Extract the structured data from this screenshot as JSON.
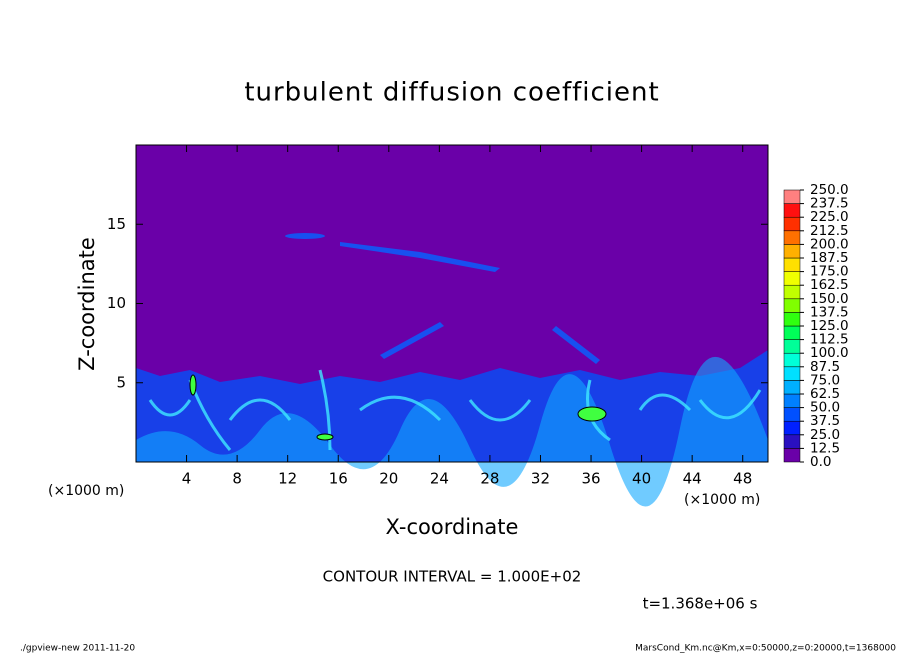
{
  "chart_data": {
    "type": "contour",
    "title": "turbulent diffusion coefficient",
    "xlabel": "X-coordinate",
    "ylabel": "Z-coordinate",
    "x_unit": "(×1000 m)",
    "x_unit_right": "(×1000 m)",
    "xlim": [
      0,
      50
    ],
    "ylim": [
      0,
      20
    ],
    "xticks": [
      4,
      8,
      12,
      16,
      20,
      24,
      28,
      32,
      36,
      40,
      44,
      48
    ],
    "yticks": [
      5,
      10,
      15
    ],
    "contour_interval": "CONTOUR INTERVAL = 1.000E+02",
    "time_label": "t=1.368e+06 s",
    "footer_left": "./gpview-new   2011-11-20",
    "footer_right": "MarsCond_Km.nc@Km,x=0:50000,z=0:20000,t=1368000",
    "colorbar": {
      "levels": [
        {
          "value": 0,
          "label": "0.0"
        },
        {
          "value": 12.5,
          "label": "12.5"
        },
        {
          "value": 25,
          "label": "25.0"
        },
        {
          "value": 37.5,
          "label": "37.5"
        },
        {
          "value": 50,
          "label": "50.0"
        },
        {
          "value": 62.5,
          "label": "62.5"
        },
        {
          "value": 75,
          "label": "75.0"
        },
        {
          "value": 87.5,
          "label": "87.5"
        },
        {
          "value": 100,
          "label": "100.0"
        },
        {
          "value": 112.5,
          "label": "112.5"
        },
        {
          "value": 125,
          "label": "125.0"
        },
        {
          "value": 137.5,
          "label": "137.5"
        },
        {
          "value": 150,
          "label": "150.0"
        },
        {
          "value": 162.5,
          "label": "162.5"
        },
        {
          "value": 175,
          "label": "175.0"
        },
        {
          "value": 187.5,
          "label": "187.5"
        },
        {
          "value": 200,
          "label": "200.0"
        },
        {
          "value": 212.5,
          "label": "212.5"
        },
        {
          "value": 225,
          "label": "225.0"
        },
        {
          "value": 237.5,
          "label": "237.5"
        },
        {
          "value": 250,
          "label": "250.0"
        }
      ],
      "colors": [
        "#6a00a8",
        "#2a10c0",
        "#0020ff",
        "#0050ff",
        "#0080ff",
        "#00b0ff",
        "#00e0ff",
        "#00ffd8",
        "#00ff98",
        "#00ff58",
        "#30ff10",
        "#80ff00",
        "#c0ff00",
        "#f0ff00",
        "#ffe000",
        "#ffb000",
        "#ff7000",
        "#ff3000",
        "#ff1010",
        "#ff8080"
      ]
    }
  }
}
